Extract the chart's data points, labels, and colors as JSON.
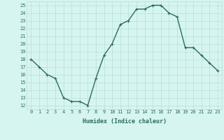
{
  "x": [
    0,
    1,
    2,
    3,
    4,
    5,
    6,
    7,
    8,
    9,
    10,
    11,
    12,
    13,
    14,
    15,
    16,
    17,
    18,
    19,
    20,
    21,
    22,
    23
  ],
  "y": [
    18,
    17,
    16,
    15.5,
    13,
    12.5,
    12.5,
    12,
    15.5,
    18.5,
    20,
    22.5,
    23,
    24.5,
    24.5,
    25,
    25,
    24,
    23.5,
    19.5,
    19.5,
    18.5,
    17.5,
    16.5
  ],
  "line_color": "#2d6b5e",
  "marker": "+",
  "marker_size": 3,
  "bg_color": "#d6f5f0",
  "grid_color": "#b8ddd8",
  "xlabel": "Humidex (Indice chaleur)",
  "xlim": [
    -0.5,
    23.5
  ],
  "ylim": [
    11.5,
    25.5
  ],
  "yticks": [
    12,
    13,
    14,
    15,
    16,
    17,
    18,
    19,
    20,
    21,
    22,
    23,
    24,
    25
  ],
  "xticks": [
    0,
    1,
    2,
    3,
    4,
    5,
    6,
    7,
    8,
    9,
    10,
    11,
    12,
    13,
    14,
    15,
    16,
    17,
    18,
    19,
    20,
    21,
    22,
    23
  ],
  "xtick_labels": [
    "0",
    "1",
    "2",
    "3",
    "4",
    "5",
    "6",
    "7",
    "8",
    "9",
    "10",
    "11",
    "12",
    "13",
    "14",
    "15",
    "16",
    "17",
    "18",
    "19",
    "20",
    "21",
    "22",
    "23"
  ],
  "font_color": "#2d6b5e",
  "linewidth": 1.0,
  "markeredgewidth": 0.8
}
